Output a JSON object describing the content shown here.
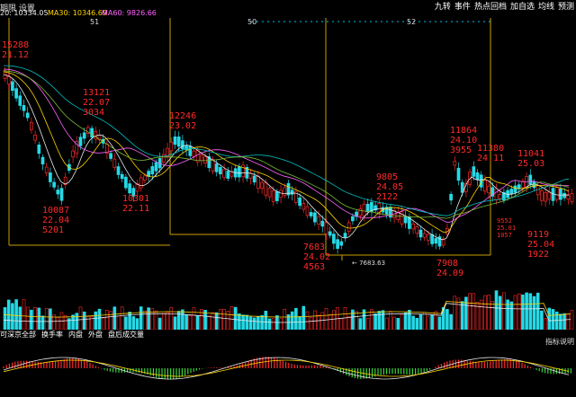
{
  "toolbar": {
    "left_labels": [
      "期限",
      "设置"
    ],
    "ma20": "20: 10334.05",
    "ma30": "MA30: 10346.69",
    "ma60": "MA60: 9826.66",
    "buttons": [
      "九转",
      "事件",
      "热点回档",
      "加自选",
      "均线",
      "预测"
    ]
  },
  "week_markers": [
    "51",
    "50",
    "52"
  ],
  "annotations": [
    {
      "lines": [
        "15288",
        "21.12"
      ]
    },
    {
      "lines": [
        "13121",
        "22.07",
        "3034"
      ]
    },
    {
      "lines": [
        "12246",
        "23.02"
      ]
    },
    {
      "lines": [
        "10087",
        "22.04",
        "5201"
      ]
    },
    {
      "lines": [
        "10301",
        "22.11"
      ]
    },
    {
      "lines": [
        "9805",
        "24.05",
        "2122"
      ]
    },
    {
      "lines": [
        "7683",
        "24.02",
        "4563"
      ]
    },
    {
      "lines": [
        "11864",
        "24.10",
        "3955"
      ]
    },
    {
      "lines": [
        "11380",
        "24.11"
      ]
    },
    {
      "lines": [
        "11041",
        "25.03"
      ]
    },
    {
      "lines": [
        "9552",
        "25.01",
        "1057"
      ]
    },
    {
      "lines": [
        "9119",
        "25.04",
        "1922"
      ]
    },
    {
      "lines": [
        "7908",
        "24.09"
      ]
    }
  ],
  "min_marker": "← 7683.63",
  "indicator_tabs": [
    "可深京全部",
    "换手率",
    "内盘",
    "外盘",
    "盘后成交量"
  ],
  "indicator_right": "指标说明",
  "colors": {
    "up": "#ff2a2a",
    "down": "#25d9e6",
    "ma20": "#e8e8e8",
    "ma30": "#ffd400",
    "ma60": "#ff62ff",
    "ma_long": "#00c0c0",
    "ma_green": "#7dbd3a",
    "frame": "#c8a000"
  }
}
